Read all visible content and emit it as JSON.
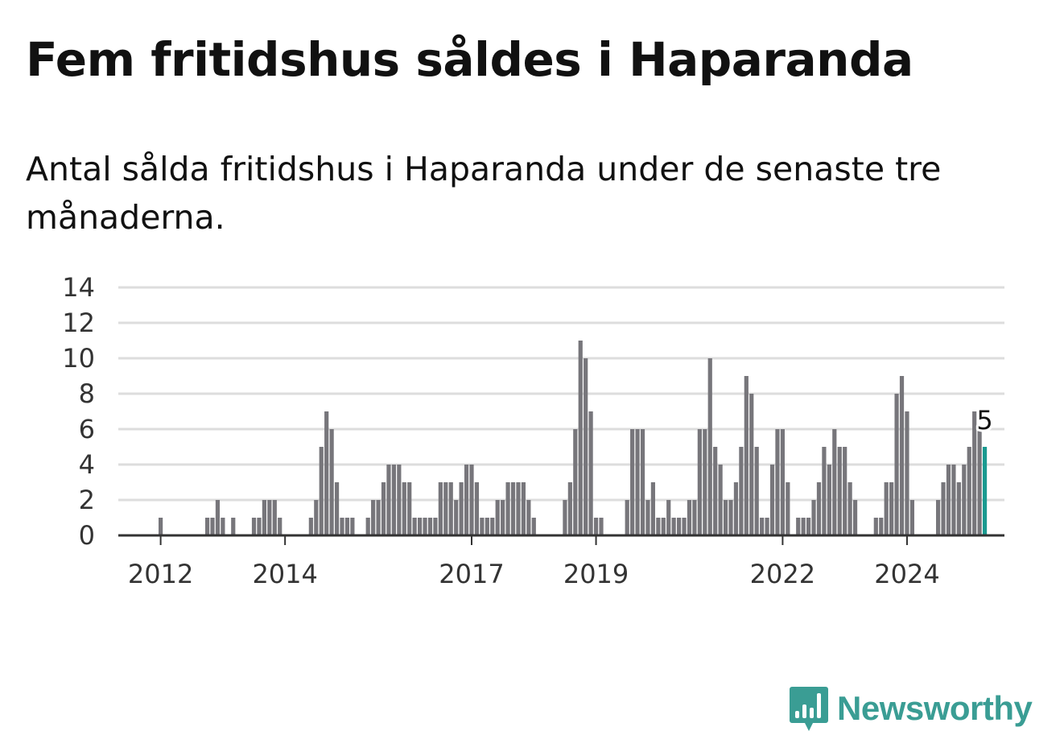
{
  "header": {
    "title": "Fem fritidshus såldes i Haparanda",
    "subtitle": "Antal sålda fritidshus i Haparanda under de senaste tre månaderna."
  },
  "brand": {
    "name": "Newsworthy",
    "icon": "newsworthy-logo-icon",
    "color": "#3a9d94"
  },
  "colors": {
    "bar": "#77767b",
    "highlight": "#1a9a90",
    "grid": "#dddddd",
    "axis": "#333333"
  },
  "chart_data": {
    "type": "bar",
    "title": "",
    "xlabel": "",
    "ylabel": "",
    "ylim": [
      0,
      14
    ],
    "yticks": [
      0,
      2,
      4,
      6,
      8,
      10,
      12,
      14
    ],
    "xticks": [
      {
        "label": "2012",
        "index": 0
      },
      {
        "label": "2014",
        "index": 24
      },
      {
        "label": "2017",
        "index": 60
      },
      {
        "label": "2019",
        "index": 84
      },
      {
        "label": "2022",
        "index": 120
      },
      {
        "label": "2024",
        "index": 144
      }
    ],
    "start_month": "2012-01",
    "values": [
      1,
      0,
      0,
      0,
      0,
      0,
      0,
      0,
      0,
      1,
      1,
      2,
      1,
      0,
      1,
      0,
      0,
      0,
      1,
      1,
      2,
      2,
      2,
      1,
      0,
      0,
      0,
      0,
      0,
      1,
      2,
      5,
      7,
      6,
      3,
      1,
      1,
      1,
      0,
      0,
      1,
      2,
      2,
      3,
      4,
      4,
      4,
      3,
      3,
      1,
      1,
      1,
      1,
      1,
      3,
      3,
      3,
      2,
      3,
      4,
      4,
      3,
      1,
      1,
      1,
      2,
      2,
      3,
      3,
      3,
      3,
      2,
      1,
      0,
      0,
      0,
      0,
      0,
      2,
      3,
      6,
      11,
      10,
      7,
      1,
      1,
      0,
      0,
      0,
      0,
      2,
      6,
      6,
      6,
      2,
      3,
      1,
      1,
      2,
      1,
      1,
      1,
      2,
      2,
      6,
      6,
      10,
      5,
      4,
      2,
      2,
      3,
      5,
      9,
      8,
      5,
      1,
      1,
      4,
      6,
      6,
      3,
      0,
      1,
      1,
      1,
      2,
      3,
      5,
      4,
      6,
      5,
      5,
      3,
      2,
      0,
      0,
      0,
      1,
      1,
      3,
      3,
      8,
      9,
      7,
      2,
      0,
      0,
      0,
      0,
      2,
      3,
      4,
      4,
      3,
      4,
      5,
      7,
      6,
      5
    ],
    "highlight_index": 159,
    "highlight_label": "5"
  }
}
